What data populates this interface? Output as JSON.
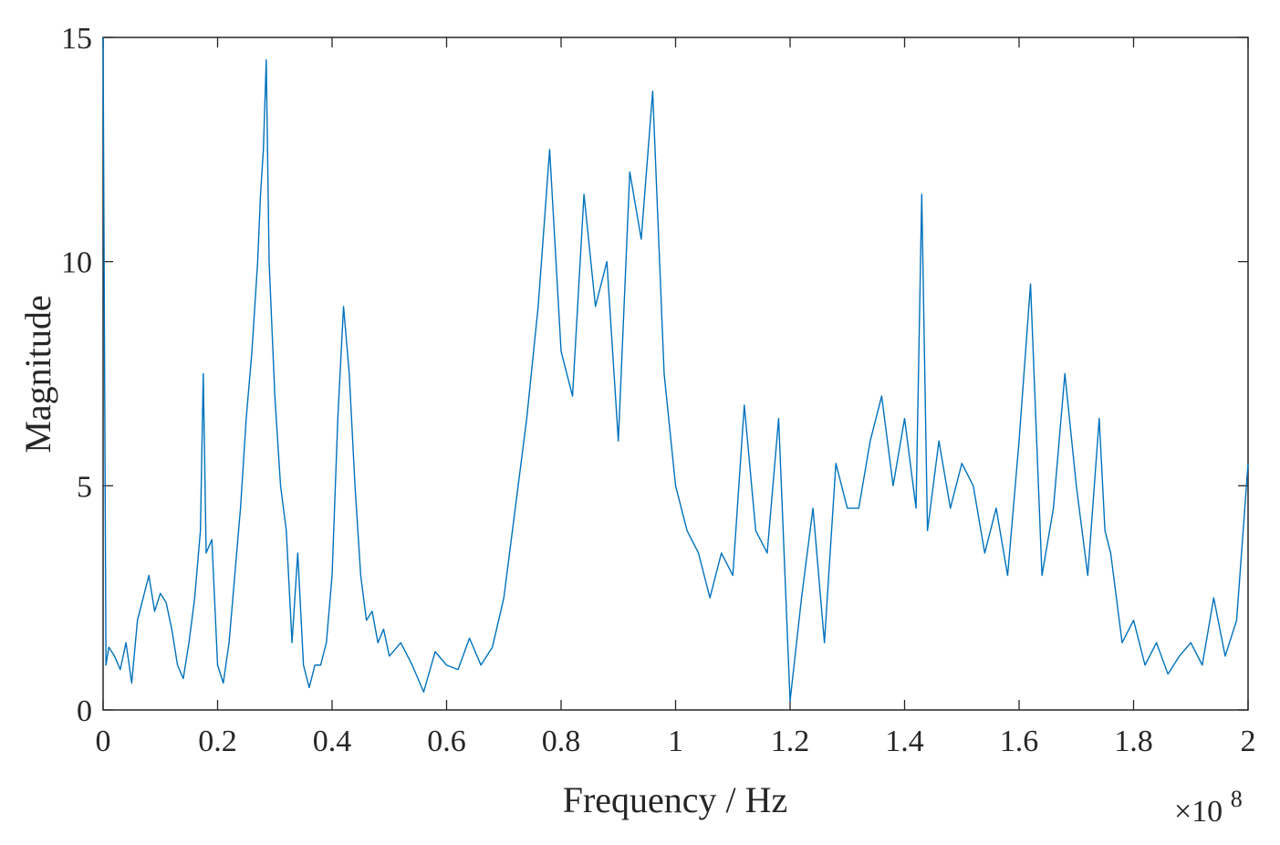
{
  "chart_data": {
    "type": "line",
    "xlabel": "Frequency / Hz",
    "ylabel": "Magnitude",
    "x_multiplier": {
      "base": "×10",
      "exponent": "8"
    },
    "xlim": [
      0,
      2
    ],
    "ylim": [
      0,
      15
    ],
    "xticks": [
      0,
      0.2,
      0.4,
      0.6,
      0.8,
      1,
      1.2,
      1.4,
      1.6,
      1.8,
      2
    ],
    "xtick_labels": [
      "0",
      "0.2",
      "0.4",
      "0.6",
      "0.8",
      "1",
      "1.2",
      "1.4",
      "1.6",
      "1.8",
      "2"
    ],
    "yticks": [
      0,
      5,
      10,
      15
    ],
    "ytick_labels": [
      "0",
      "5",
      "10",
      "15"
    ],
    "grid": false,
    "box": true,
    "series": [
      {
        "color": "#0072BD",
        "x": [
          0,
          0.005,
          0.01,
          0.02,
          0.03,
          0.04,
          0.05,
          0.06,
          0.07,
          0.08,
          0.09,
          0.1,
          0.11,
          0.12,
          0.13,
          0.14,
          0.15,
          0.16,
          0.17,
          0.175,
          0.18,
          0.19,
          0.2,
          0.21,
          0.22,
          0.23,
          0.24,
          0.25,
          0.26,
          0.27,
          0.275,
          0.28,
          0.285,
          0.29,
          0.3,
          0.31,
          0.32,
          0.33,
          0.34,
          0.35,
          0.36,
          0.37,
          0.38,
          0.39,
          0.4,
          0.41,
          0.42,
          0.43,
          0.44,
          0.45,
          0.46,
          0.47,
          0.48,
          0.49,
          0.5,
          0.52,
          0.54,
          0.56,
          0.58,
          0.6,
          0.62,
          0.64,
          0.66,
          0.68,
          0.7,
          0.72,
          0.74,
          0.76,
          0.78,
          0.8,
          0.82,
          0.84,
          0.86,
          0.88,
          0.9,
          0.92,
          0.94,
          0.96,
          0.98,
          1.0,
          1.02,
          1.04,
          1.06,
          1.08,
          1.1,
          1.12,
          1.14,
          1.16,
          1.18,
          1.2,
          1.22,
          1.24,
          1.26,
          1.28,
          1.3,
          1.32,
          1.34,
          1.36,
          1.38,
          1.4,
          1.42,
          1.43,
          1.44,
          1.46,
          1.48,
          1.5,
          1.52,
          1.54,
          1.56,
          1.58,
          1.6,
          1.62,
          1.64,
          1.66,
          1.68,
          1.7,
          1.72,
          1.74,
          1.75,
          1.76,
          1.78,
          1.8,
          1.82,
          1.84,
          1.86,
          1.88,
          1.9,
          1.92,
          1.94,
          1.96,
          1.98,
          2.0
        ],
        "y": [
          15,
          1.0,
          1.4,
          1.2,
          0.9,
          1.5,
          0.6,
          2.0,
          2.5,
          3.0,
          2.2,
          2.6,
          2.4,
          1.8,
          1.0,
          0.7,
          1.5,
          2.5,
          4.0,
          7.5,
          3.5,
          3.8,
          1.0,
          0.6,
          1.5,
          3.0,
          4.5,
          6.5,
          8.0,
          10.0,
          11.5,
          12.5,
          14.5,
          10.0,
          7.0,
          5.0,
          4.0,
          1.5,
          3.5,
          1.0,
          0.5,
          1.0,
          1.0,
          1.5,
          3.0,
          6.5,
          9.0,
          7.5,
          5.0,
          3.0,
          2.0,
          2.2,
          1.5,
          1.8,
          1.2,
          1.5,
          1.0,
          0.4,
          1.3,
          1.0,
          0.9,
          1.6,
          1.0,
          1.4,
          2.5,
          4.5,
          6.5,
          9.0,
          12.5,
          8.0,
          7.0,
          11.5,
          9.0,
          10.0,
          6.0,
          12.0,
          10.5,
          13.8,
          7.5,
          5.0,
          4.0,
          3.5,
          2.5,
          3.5,
          3.0,
          6.8,
          4.0,
          3.5,
          6.5,
          0.2,
          2.5,
          4.5,
          1.5,
          5.5,
          4.5,
          4.5,
          6.0,
          7.0,
          5.0,
          6.5,
          4.5,
          11.5,
          4.0,
          6.0,
          4.5,
          5.5,
          5.0,
          3.5,
          4.5,
          3.0,
          6.0,
          9.5,
          3.0,
          4.5,
          7.5,
          5.0,
          3.0,
          6.5,
          4.0,
          3.5,
          1.5,
          2.0,
          1.0,
          1.5,
          0.8,
          1.2,
          1.5,
          1.0,
          2.5,
          1.2,
          2.0,
          5.5
        ]
      }
    ]
  }
}
